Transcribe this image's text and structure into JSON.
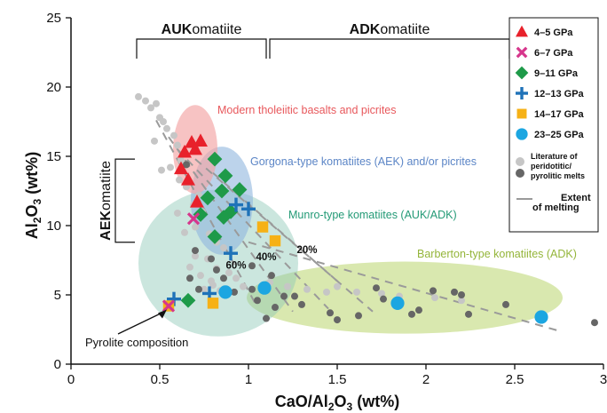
{
  "chart_data": {
    "type": "scatter",
    "xlabel_main": "CaO/Al",
    "xlabel_sub1": "2",
    "xlabel_mid": "O",
    "xlabel_sub2": "3",
    "xlabel_end": " (wt%)",
    "ylabel_main": "Al",
    "ylabel_sub1": "2",
    "ylabel_mid": "O",
    "ylabel_sub2": "3",
    "ylabel_end": " (wt%)",
    "xlim": [
      0,
      3
    ],
    "ylim": [
      0,
      25
    ],
    "xticks": [
      0,
      0.5,
      1,
      1.5,
      2,
      2.5,
      3
    ],
    "xtick_labels": [
      "0",
      "0.5",
      "1",
      "1.5",
      "2",
      "2.5",
      "3"
    ],
    "yticks": [
      0,
      5,
      10,
      15,
      20,
      25
    ],
    "ytick_labels": [
      "0",
      "5",
      "10",
      "15",
      "20",
      "25"
    ],
    "grid": false,
    "legend_position": "top-right",
    "colors": {
      "red": "#e8212b",
      "magenta": "#d6368c",
      "green": "#1e9a49",
      "blue": "#1f72b8",
      "orange": "#f6b116",
      "cyan": "#1ca6e1",
      "lit_light": "#c6c6c6",
      "lit_dark": "#666666",
      "modern_region": "#f3a3a3",
      "gorgona_region": "#8fb6de",
      "munro_region": "#8cc8b6",
      "barberton_region": "#c4dc84"
    },
    "regions": [
      {
        "name": "Modern tholeiitic basalts and picrites",
        "color": "#e8585c",
        "cx": 0.7,
        "cy": 15.5,
        "rx": 0.125,
        "ry": 3.2
      },
      {
        "name": "Gorgona-type komatiites (AEK) and/or picrites",
        "color": "#5b85c6",
        "cx": 0.85,
        "cy": 11.8,
        "rx": 0.175,
        "ry": 3.9
      },
      {
        "name": "Munro-type komatiites (AUK/ADK)",
        "color": "#239a76",
        "cx": 0.83,
        "cy": 7.3,
        "rx": 0.45,
        "ry": 5.3
      },
      {
        "name": "Barberton-type komatiites (ADK)",
        "color": "#94b53a",
        "cx": 1.88,
        "cy": 4.8,
        "rx": 0.89,
        "ry": 2.6
      }
    ],
    "region_label_positions_note": "",
    "series": [
      {
        "name": "4–5 GPa",
        "marker": "triangle",
        "color": "#e8212b",
        "x": [
          0.62,
          0.64,
          0.66,
          0.68,
          0.7,
          0.73,
          0.71
        ],
        "y": [
          14.1,
          15.3,
          13.3,
          16.0,
          15.5,
          16.1,
          11.7
        ]
      },
      {
        "name": "6–7 GPa",
        "marker": "x",
        "color": "#d6368c",
        "x": [
          0.69,
          0.55
        ],
        "y": [
          10.5,
          4.2
        ]
      },
      {
        "name": "9–11 GPa",
        "marker": "diamond",
        "color": "#1e9a49",
        "x": [
          0.77,
          0.81,
          0.85,
          0.87,
          0.9,
          0.95,
          0.86,
          0.81,
          0.73,
          0.66
        ],
        "y": [
          12.0,
          14.8,
          12.5,
          13.6,
          11.0,
          12.6,
          10.6,
          9.2,
          10.8,
          4.6
        ]
      },
      {
        "name": "12–13 GPa",
        "marker": "plus",
        "color": "#1f72b8",
        "x": [
          0.93,
          1.0,
          0.9,
          0.78,
          0.58
        ],
        "y": [
          11.5,
          11.2,
          8.0,
          5.1,
          4.7
        ]
      },
      {
        "name": "14–17 GPa",
        "marker": "square",
        "color": "#f6b116",
        "x": [
          1.08,
          1.15,
          0.8,
          0.55
        ],
        "y": [
          9.9,
          8.9,
          4.4,
          4.2
        ]
      },
      {
        "name": "23–25 GPa",
        "marker": "circle",
        "color": "#1ca6e1",
        "x": [
          0.87,
          1.09,
          1.84,
          2.65
        ],
        "y": [
          5.2,
          5.5,
          4.4,
          3.4
        ]
      },
      {
        "name": "Literature of peridotitic/pyrolitic melts (light)",
        "marker": "dot",
        "color": "#c6c6c6",
        "x": [
          0.38,
          0.42,
          0.45,
          0.48,
          0.5,
          0.52,
          0.54,
          0.47,
          0.58,
          0.6,
          0.56,
          0.62,
          0.51,
          0.61,
          0.65,
          0.72,
          0.69,
          0.74,
          0.6,
          0.7,
          0.78,
          0.64,
          0.82,
          0.86,
          0.77,
          0.82,
          0.89,
          0.93,
          0.84,
          0.8,
          0.67,
          0.7,
          0.73,
          0.79,
          0.75,
          0.97,
          1.12,
          1.22,
          1.33,
          1.44,
          1.61,
          1.5,
          1.75,
          1.85,
          2.05,
          2.2
        ],
        "y": [
          19.3,
          19.0,
          18.5,
          18.8,
          17.8,
          17.5,
          17.0,
          16.1,
          16.5,
          15.8,
          14.2,
          14.7,
          14.0,
          13.3,
          12.8,
          12.2,
          11.5,
          11.0,
          10.9,
          9.9,
          9.4,
          9.5,
          8.8,
          8.4,
          7.6,
          6.9,
          6.6,
          6.2,
          5.3,
          5.7,
          7.0,
          7.8,
          6.4,
          6.0,
          5.4,
          5.6,
          5.9,
          5.6,
          5.4,
          5.2,
          5.2,
          5.6,
          5.1,
          4.9,
          4.8,
          4.6
        ]
      },
      {
        "name": "Literature of peridotitic/pyrolitic melts (dark)",
        "marker": "dot",
        "color": "#666666",
        "x": [
          0.65,
          0.67,
          0.72,
          0.82,
          0.86,
          0.92,
          1.02,
          1.05,
          1.1,
          1.15,
          1.2,
          1.26,
          1.3,
          1.46,
          1.5,
          1.62,
          1.72,
          1.76,
          1.96,
          2.04,
          2.2,
          2.24,
          2.45,
          2.95,
          1.13,
          1.02,
          0.79,
          0.7,
          2.16,
          1.92
        ],
        "y": [
          14.4,
          6.2,
          5.4,
          6.8,
          6.2,
          5.2,
          5.4,
          4.6,
          3.3,
          4.1,
          4.9,
          4.9,
          4.3,
          3.7,
          3.2,
          3.5,
          5.5,
          4.7,
          3.9,
          5.3,
          5.0,
          3.6,
          4.3,
          3.0,
          6.4,
          7.1,
          7.6,
          8.2,
          5.2,
          3.6
        ]
      }
    ],
    "melting_lines": [
      {
        "x": [
          0.48,
          1.05
        ],
        "y": [
          17.6,
          4.1
        ]
      },
      {
        "x": [
          0.55,
          1.25
        ],
        "y": [
          16.4,
          3.8
        ]
      },
      {
        "x": [
          0.6,
          1.45
        ],
        "y": [
          15.5,
          4.0
        ]
      },
      {
        "x": [
          0.7,
          1.7
        ],
        "y": [
          14.8,
          3.8
        ]
      },
      {
        "x": [
          0.8,
          1.5
        ],
        "y": [
          13.8,
          6.0
        ]
      },
      {
        "x": [
          1.0,
          2.75
        ],
        "y": [
          8.8,
          2.4
        ]
      }
    ],
    "melt_percent_labels": [
      {
        "text": "60%",
        "x": 0.93,
        "y": 6.9
      },
      {
        "text": "40%",
        "x": 1.1,
        "y": 7.5
      },
      {
        "text": "20%",
        "x": 1.33,
        "y": 8.0
      }
    ],
    "group_labels": [
      {
        "bold": "AUK",
        "rest": "omatiite",
        "x_from": 0.37,
        "x_to": 1.1
      },
      {
        "bold": "ADK",
        "rest": "omatiite",
        "x_from": 1.12,
        "x_to": 2.47
      }
    ],
    "aek_label": {
      "bold": "AEK",
      "rest": "omatiite",
      "y_from": 8.8,
      "y_to": 14.8
    },
    "pyrolite_label": "Pyrolite composition",
    "legend": [
      {
        "label": "4–5 GPa",
        "marker": "triangle",
        "color": "#e8212b"
      },
      {
        "label": "6–7 GPa",
        "marker": "x",
        "color": "#d6368c"
      },
      {
        "label": "9–11 GPa",
        "marker": "diamond",
        "color": "#1e9a49"
      },
      {
        "label": "12–13 GPa",
        "marker": "plus",
        "color": "#1f72b8"
      },
      {
        "label": "14–17 GPa",
        "marker": "square",
        "color": "#f6b116"
      },
      {
        "label": "23–25 GPa",
        "marker": "circle",
        "color": "#1ca6e1"
      }
    ],
    "legend_literature": [
      "Literature of",
      "peridotitic/",
      "pyrolitic melts"
    ],
    "legend_extent": [
      "Extent",
      "of melting"
    ]
  }
}
